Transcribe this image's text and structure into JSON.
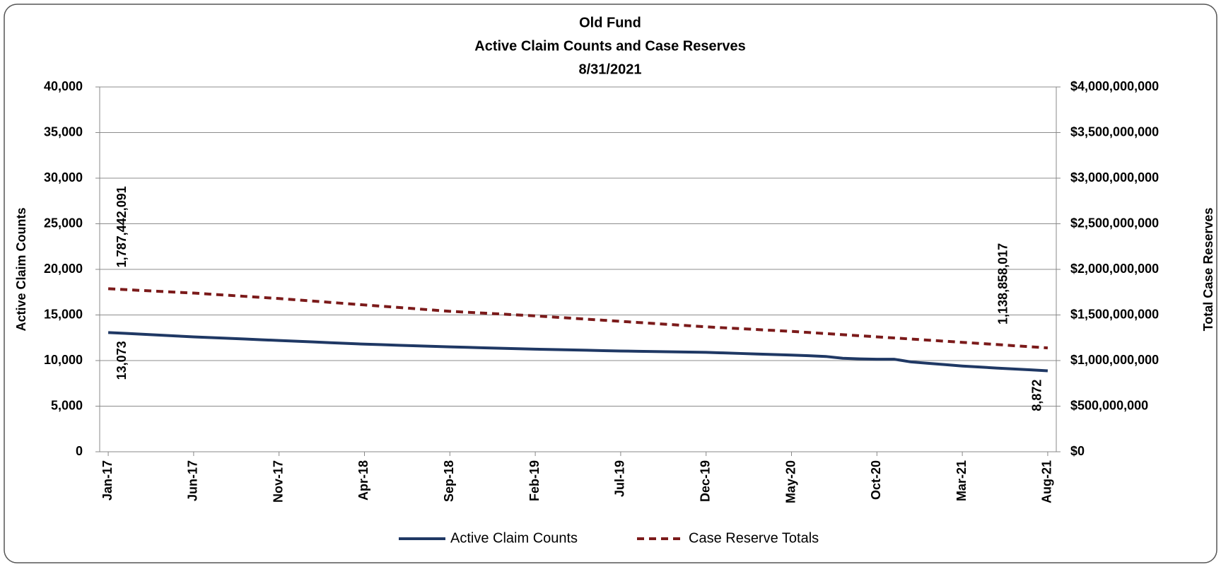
{
  "chart_data": {
    "type": "line",
    "title": [
      "Old Fund",
      "Active Claim Counts and Case Reserves",
      "8/31/2021"
    ],
    "y_label": "Active Claim Counts",
    "y2_label": "Total Case Reserves",
    "categories": [
      "Jan-17",
      null,
      null,
      null,
      null,
      "Jun-17",
      null,
      null,
      null,
      null,
      "Nov-17",
      null,
      null,
      null,
      null,
      "Apr-18",
      null,
      null,
      null,
      null,
      "Sep-18",
      null,
      null,
      null,
      null,
      "Feb-19",
      null,
      null,
      null,
      null,
      "Jul-19",
      null,
      null,
      null,
      null,
      "Dec-19",
      null,
      null,
      null,
      null,
      "May-20",
      null,
      null,
      null,
      null,
      "Oct-20",
      null,
      null,
      null,
      null,
      "Mar-21",
      null,
      null,
      null,
      null,
      "Aug-21"
    ],
    "ylim": [
      0,
      40000
    ],
    "yticks": [
      0,
      {
        "value": 5000,
        "label": "5,000"
      },
      {
        "value": 10000,
        "label": "10,000"
      },
      {
        "value": 15000,
        "label": "15,000"
      },
      {
        "value": 20000,
        "label": "20,000"
      },
      {
        "value": 25000,
        "label": "25,000"
      },
      {
        "value": 30000,
        "label": "30,000"
      },
      {
        "value": 35000,
        "label": "35,000"
      },
      {
        "value": 40000,
        "label": "40,000"
      }
    ],
    "y2lim": [
      0,
      4000000000
    ],
    "y2ticks": [
      {
        "value": 0,
        "label": "$0"
      },
      {
        "value": 500000000,
        "label": "$500,000,000"
      },
      {
        "value": 1000000000,
        "label": "$1,000,000,000"
      },
      {
        "value": 1500000000,
        "label": "$1,500,000,000"
      },
      {
        "value": 2000000000,
        "label": "$2,000,000,000"
      },
      {
        "value": 2500000000,
        "label": "$2,500,000,000"
      },
      {
        "value": 3000000000,
        "label": "$3,000,000,000"
      },
      {
        "value": 3500000000,
        "label": "$3,500,000,000"
      },
      {
        "value": 4000000000,
        "label": "$4,000,000,000"
      }
    ],
    "grid": true,
    "legend": "bottom",
    "series": [
      {
        "name": "Active Claim Counts",
        "color": "#1f3864",
        "dashed": false,
        "values": [
          13073,
          12980,
          12885,
          12790,
          12695,
          12600,
          12520,
          12440,
          12360,
          12280,
          12200,
          12120,
          12040,
          11960,
          11880,
          11800,
          11740,
          11680,
          11620,
          11560,
          11500,
          11450,
          11400,
          11350,
          11300,
          11250,
          11210,
          11170,
          11130,
          11090,
          11050,
          11020,
          10990,
          10960,
          10930,
          10900,
          10840,
          10780,
          10720,
          10660,
          10600,
          10530,
          10450,
          10250,
          10180,
          10150,
          10150,
          9850,
          9700,
          9550,
          9400,
          9290,
          9180,
          9080,
          8980,
          8872
        ],
        "value_labels": [
          "13,073",
          null,
          null,
          null,
          null,
          null,
          null,
          null,
          null,
          null,
          null,
          null,
          null,
          null,
          null,
          null,
          null,
          null,
          null,
          null,
          null,
          null,
          null,
          null,
          null,
          null,
          null,
          null,
          null,
          null,
          null,
          null,
          null,
          null,
          null,
          null,
          null,
          null,
          null,
          null,
          null,
          null,
          null,
          null,
          null,
          null,
          null,
          null,
          null,
          null,
          null,
          null,
          null,
          null,
          null,
          "8,872"
        ]
      },
      {
        "name": "Case Reserve Totals",
        "color": "#7b1a1a",
        "dashed": true,
        "axis": "y2",
        "values": [
          1787442091,
          1778000000,
          1768000000,
          1759000000,
          1749000000,
          1740000000,
          1728000000,
          1716000000,
          1704000000,
          1692000000,
          1680000000,
          1666000000,
          1652000000,
          1638000000,
          1624000000,
          1610000000,
          1596000000,
          1582000000,
          1568000000,
          1554000000,
          1540000000,
          1530000000,
          1520000000,
          1510000000,
          1500000000,
          1490000000,
          1478000000,
          1466000000,
          1454000000,
          1442000000,
          1430000000,
          1418000000,
          1406000000,
          1394000000,
          1382000000,
          1370000000,
          1360000000,
          1350000000,
          1340000000,
          1330000000,
          1320000000,
          1308000000,
          1296000000,
          1284000000,
          1272000000,
          1260000000,
          1248000000,
          1236000000,
          1224000000,
          1212000000,
          1200000000,
          1188000000,
          1176000000,
          1163000000,
          1151000000,
          1138858017
        ],
        "value_labels": [
          "1,787,442,091",
          null,
          null,
          null,
          null,
          null,
          null,
          null,
          null,
          null,
          null,
          null,
          null,
          null,
          null,
          null,
          null,
          null,
          null,
          null,
          null,
          null,
          null,
          null,
          null,
          null,
          null,
          null,
          null,
          null,
          null,
          null,
          null,
          null,
          null,
          null,
          null,
          null,
          null,
          null,
          null,
          null,
          null,
          null,
          null,
          null,
          null,
          null,
          null,
          null,
          null,
          null,
          null,
          "1,138,858,017"
        ]
      }
    ]
  }
}
